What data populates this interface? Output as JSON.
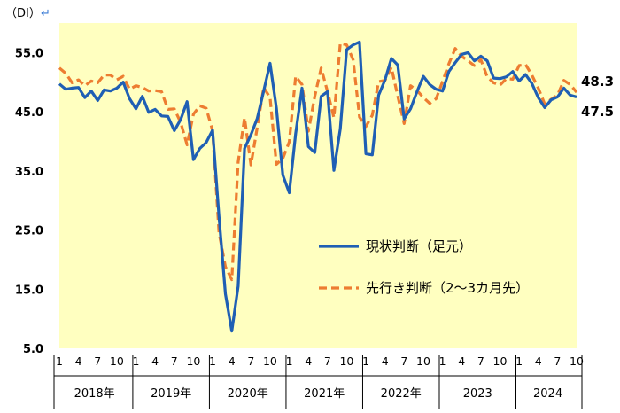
{
  "chart_data": {
    "type": "line",
    "unit_label": "（DI）",
    "unit_mark": "↵",
    "ylim": [
      5,
      60
    ],
    "yticks": [
      5,
      15,
      25,
      35,
      45,
      55
    ],
    "ytick_labels": [
      "5.0",
      "15.0",
      "25.0",
      "35.0",
      "45.0",
      "55.0"
    ],
    "grid": false,
    "plot_background": "#FFFFC0",
    "month_tick_labels": [
      "1",
      "4",
      "7",
      "10",
      "1",
      "4",
      "7",
      "10",
      "1",
      "4",
      "7",
      "10",
      "1",
      "4",
      "7",
      "10",
      "1",
      "4",
      "7",
      "10",
      "1",
      "4",
      "7",
      "10",
      "1",
      "4",
      "7",
      "10"
    ],
    "years": [
      {
        "label": "2018年",
        "months": 12
      },
      {
        "label": "2019年",
        "months": 12
      },
      {
        "label": "2020年",
        "months": 12
      },
      {
        "label": "2021年",
        "months": 12
      },
      {
        "label": "2022年",
        "months": 12
      },
      {
        "label": "2023",
        "months": 12
      },
      {
        "label": "2024",
        "months": 10
      }
    ],
    "series": [
      {
        "name": "現状判断（足元）",
        "color": "#1F5FB4",
        "style": "solid",
        "values": [
          49.7,
          48.8,
          49.0,
          49.1,
          47.4,
          48.5,
          46.9,
          48.7,
          48.5,
          49.0,
          50.0,
          47.2,
          45.5,
          47.6,
          44.9,
          45.4,
          44.3,
          44.2,
          41.8,
          43.7,
          46.7,
          36.9,
          38.8,
          39.8,
          41.9,
          27.4,
          14.2,
          7.9,
          15.5,
          38.8,
          41.1,
          43.9,
          48.5,
          53.2,
          45.6,
          34.3,
          31.3,
          41.3,
          49.0,
          39.1,
          38.1,
          47.6,
          48.4,
          35.1,
          42.1,
          55.5,
          56.3,
          56.8,
          37.9,
          37.7,
          47.8,
          50.4,
          54.0,
          52.9,
          43.8,
          45.5,
          48.4,
          51.0,
          49.6,
          48.8,
          48.5,
          51.8,
          53.3,
          54.7,
          55.0,
          53.6,
          54.4,
          53.6,
          50.7,
          50.6,
          50.9,
          51.8,
          50.2,
          51.3,
          49.8,
          47.4,
          45.7,
          47.0,
          47.5,
          49.0,
          47.8,
          47.5
        ]
      },
      {
        "name": "先行き判断（2～3カ月先）",
        "color": "#ED7D31",
        "style": "dashed",
        "values": [
          52.4,
          51.5,
          49.9,
          50.4,
          49.4,
          50.2,
          49.9,
          51.2,
          51.2,
          50.4,
          51.0,
          48.8,
          49.4,
          49.1,
          48.5,
          48.6,
          48.4,
          45.4,
          45.5,
          43.2,
          39.4,
          44.6,
          46.0,
          45.6,
          41.8,
          24.6,
          18.8,
          16.6,
          36.5,
          44.0,
          36.0,
          42.4,
          49.1,
          47.4,
          36.1,
          37.1,
          39.9,
          51.0,
          49.6,
          41.7,
          47.6,
          52.4,
          48.4,
          44.0,
          56.6,
          56.3,
          53.8,
          44.1,
          42.5,
          44.4,
          50.1,
          50.3,
          52.5,
          47.6,
          43.0,
          49.4,
          48.6,
          47.4,
          46.4,
          47.2,
          50.1,
          53.1,
          55.7,
          54.4,
          53.6,
          52.8,
          53.8,
          50.9,
          49.9,
          49.5,
          50.6,
          50.5,
          52.8,
          53.0,
          51.2,
          49.0,
          46.3,
          47.1,
          47.8,
          50.3,
          49.6,
          48.3
        ]
      }
    ],
    "end_labels": [
      "48.3",
      "47.5"
    ],
    "legend_placement": "center-right inside plot"
  }
}
